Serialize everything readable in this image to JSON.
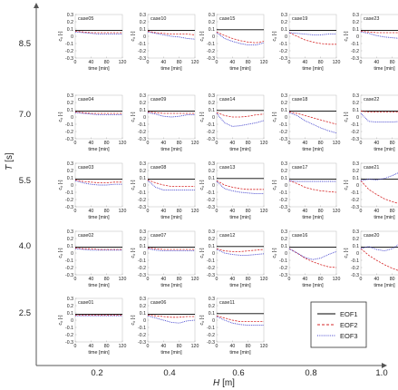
{
  "chart_data": {
    "type": "line",
    "big_axes": {
      "xlabel_var": "H",
      "xlabel_unit": "[m]",
      "ylabel_var": "T",
      "ylabel_unit": "[s]",
      "x_ticks": [
        "0.2",
        "0.4",
        "0.6",
        "0.8",
        "1.0"
      ],
      "y_ticks": [
        "8.5",
        "7.0",
        "5.5",
        "4.0",
        "2.5"
      ]
    },
    "subplot_axes": {
      "xlabel": "time [min]",
      "ylabel_var": "c",
      "ylabel_sub": "k",
      "ylabel_unit": "[-]",
      "x_ticks": [
        0,
        40,
        80,
        120
      ],
      "y_ticks": [
        "0.3",
        "0.2",
        "0.1",
        "0",
        "-0.1",
        "-0.2",
        "-0.3"
      ],
      "xlim": [
        0,
        120
      ],
      "ylim": [
        -0.3,
        0.3
      ]
    },
    "x": [
      0,
      20,
      40,
      60,
      80,
      100,
      120
    ],
    "legend": {
      "position": "bottom-right",
      "entries": [
        {
          "name": "EOF1",
          "color": "#000000",
          "dash": "solid"
        },
        {
          "name": "EOF2",
          "color": "#d62728",
          "dash": "dashed"
        },
        {
          "name": "EOF3",
          "color": "#3d3dcc",
          "dash": "dotted"
        }
      ]
    },
    "panels": [
      {
        "label": "case05",
        "col": 0,
        "row": 0,
        "series": [
          [
            0.08,
            0.08,
            0.08,
            0.08,
            0.08,
            0.08,
            0.08
          ],
          [
            0.07,
            0.06,
            0.05,
            0.05,
            0.05,
            0.05,
            0.05
          ],
          [
            0.06,
            0.05,
            0.04,
            0.03,
            0.03,
            0.03,
            0.03
          ]
        ]
      },
      {
        "label": "case10",
        "col": 1,
        "row": 0,
        "series": [
          [
            0.08,
            0.08,
            0.08,
            0.08,
            0.08,
            0.08,
            0.08
          ],
          [
            0.07,
            0.05,
            0.04,
            0.03,
            0.03,
            0.03,
            0.02
          ],
          [
            0.06,
            0.04,
            0.02,
            0.0,
            -0.01,
            -0.03,
            -0.04
          ]
        ]
      },
      {
        "label": "case15",
        "col": 2,
        "row": 0,
        "series": [
          [
            0.09,
            0.09,
            0.09,
            0.09,
            0.09,
            0.09,
            0.09
          ],
          [
            0.06,
            0.01,
            -0.03,
            -0.06,
            -0.08,
            -0.09,
            -0.07
          ],
          [
            0.05,
            -0.03,
            -0.07,
            -0.1,
            -0.12,
            -0.12,
            -0.09
          ]
        ]
      },
      {
        "label": "case19",
        "col": 3,
        "row": 0,
        "series": [
          [
            0.08,
            0.08,
            0.08,
            0.08,
            0.08,
            0.08,
            0.08
          ],
          [
            0.05,
            0.0,
            -0.05,
            -0.08,
            -0.1,
            -0.11,
            -0.11
          ],
          [
            0.05,
            0.04,
            0.03,
            0.02,
            0.02,
            0.03,
            0.03
          ]
        ]
      },
      {
        "label": "case23",
        "col": 4,
        "row": 0,
        "series": [
          [
            0.08,
            0.08,
            0.08,
            0.08,
            0.08,
            0.08,
            0.08
          ],
          [
            0.07,
            0.06,
            0.05,
            0.05,
            0.05,
            0.05,
            0.05
          ],
          [
            0.06,
            0.04,
            0.01,
            -0.01,
            -0.02,
            -0.03,
            -0.04
          ]
        ]
      },
      {
        "label": "case04",
        "col": 0,
        "row": 1,
        "series": [
          [
            0.08,
            0.08,
            0.08,
            0.08,
            0.08,
            0.08,
            0.08
          ],
          [
            0.07,
            0.06,
            0.05,
            0.05,
            0.05,
            0.05,
            0.05
          ],
          [
            0.06,
            0.05,
            0.04,
            0.03,
            0.03,
            0.03,
            0.03
          ]
        ]
      },
      {
        "label": "case09",
        "col": 1,
        "row": 1,
        "series": [
          [
            0.08,
            0.08,
            0.08,
            0.08,
            0.08,
            0.08,
            0.08
          ],
          [
            0.07,
            0.06,
            0.05,
            0.05,
            0.05,
            0.05,
            0.05
          ],
          [
            0.06,
            0.04,
            0.01,
            0.0,
            0.01,
            0.03,
            0.03
          ]
        ]
      },
      {
        "label": "case14",
        "col": 2,
        "row": 1,
        "series": [
          [
            0.09,
            0.09,
            0.09,
            0.09,
            0.09,
            0.09,
            0.09
          ],
          [
            0.06,
            0.02,
            0.0,
            0.0,
            0.01,
            0.03,
            0.04
          ],
          [
            0.05,
            -0.08,
            -0.13,
            -0.12,
            -0.1,
            -0.08,
            -0.05
          ]
        ]
      },
      {
        "label": "case18",
        "col": 3,
        "row": 1,
        "series": [
          [
            0.08,
            0.08,
            0.08,
            0.08,
            0.08,
            0.08,
            0.08
          ],
          [
            0.07,
            0.05,
            0.02,
            -0.01,
            -0.04,
            -0.07,
            -0.1
          ],
          [
            0.06,
            0.02,
            -0.05,
            -0.1,
            -0.15,
            -0.19,
            -0.22
          ]
        ]
      },
      {
        "label": "case22",
        "col": 4,
        "row": 1,
        "series": [
          [
            0.08,
            0.08,
            0.08,
            0.08,
            0.08,
            0.08,
            0.08
          ],
          [
            0.08,
            0.07,
            0.07,
            0.07,
            0.07,
            0.07,
            0.07
          ],
          [
            0.05,
            -0.06,
            -0.07,
            -0.07,
            -0.07,
            -0.06,
            -0.06
          ]
        ]
      },
      {
        "label": "case03",
        "col": 0,
        "row": 2,
        "series": [
          [
            0.08,
            0.08,
            0.08,
            0.08,
            0.08,
            0.08,
            0.08
          ],
          [
            0.07,
            0.05,
            0.04,
            0.03,
            0.03,
            0.04,
            0.04
          ],
          [
            0.06,
            0.03,
            0.01,
            0.0,
            0.0,
            0.01,
            0.01
          ]
        ]
      },
      {
        "label": "case08",
        "col": 1,
        "row": 2,
        "series": [
          [
            0.08,
            0.08,
            0.08,
            0.08,
            0.08,
            0.08,
            0.08
          ],
          [
            0.07,
            0.03,
            0.0,
            -0.02,
            -0.02,
            -0.02,
            -0.02
          ],
          [
            0.06,
            -0.03,
            -0.07,
            -0.07,
            -0.07,
            -0.07,
            -0.07
          ]
        ]
      },
      {
        "label": "case13",
        "col": 2,
        "row": 2,
        "series": [
          [
            0.09,
            0.09,
            0.09,
            0.09,
            0.09,
            0.09,
            0.09
          ],
          [
            0.06,
            0.0,
            -0.03,
            -0.05,
            -0.06,
            -0.06,
            -0.06
          ],
          [
            0.05,
            -0.05,
            -0.08,
            -0.1,
            -0.11,
            -0.12,
            -0.12
          ]
        ]
      },
      {
        "label": "case17",
        "col": 3,
        "row": 2,
        "series": [
          [
            0.08,
            0.08,
            0.08,
            0.08,
            0.08,
            0.08,
            0.08
          ],
          [
            0.06,
            0.02,
            -0.03,
            -0.06,
            -0.08,
            -0.09,
            -0.1
          ],
          [
            0.06,
            0.05,
            0.05,
            0.05,
            0.05,
            0.05,
            0.05
          ]
        ]
      },
      {
        "label": "case21",
        "col": 4,
        "row": 2,
        "series": [
          [
            0.08,
            0.08,
            0.08,
            0.08,
            0.08,
            0.08,
            0.08
          ],
          [
            0.06,
            -0.06,
            -0.13,
            -0.19,
            -0.23,
            -0.26,
            -0.27
          ],
          [
            0.06,
            0.08,
            0.07,
            0.09,
            0.13,
            0.18,
            0.22
          ]
        ]
      },
      {
        "label": "case02",
        "col": 0,
        "row": 3,
        "series": [
          [
            0.08,
            0.08,
            0.08,
            0.08,
            0.08,
            0.08,
            0.08
          ],
          [
            0.07,
            0.06,
            0.06,
            0.05,
            0.05,
            0.05,
            0.05
          ],
          [
            0.06,
            0.05,
            0.04,
            0.04,
            0.04,
            0.04,
            0.04
          ]
        ]
      },
      {
        "label": "case07",
        "col": 1,
        "row": 3,
        "series": [
          [
            0.08,
            0.08,
            0.08,
            0.08,
            0.08,
            0.08,
            0.08
          ],
          [
            0.07,
            0.06,
            0.05,
            0.05,
            0.05,
            0.05,
            0.05
          ],
          [
            0.06,
            0.04,
            0.03,
            0.03,
            0.03,
            0.03,
            0.03
          ]
        ]
      },
      {
        "label": "case12",
        "col": 2,
        "row": 3,
        "series": [
          [
            0.09,
            0.09,
            0.09,
            0.09,
            0.09,
            0.09,
            0.09
          ],
          [
            0.06,
            0.03,
            0.02,
            0.02,
            0.03,
            0.04,
            0.05
          ],
          [
            0.05,
            0.0,
            -0.02,
            -0.03,
            -0.03,
            -0.02,
            -0.01
          ]
        ]
      },
      {
        "label": "case16",
        "col": 3,
        "row": 3,
        "series": [
          [
            0.08,
            0.08,
            0.08,
            0.08,
            0.08,
            0.08,
            0.08
          ],
          [
            0.06,
            0.0,
            -0.07,
            -0.12,
            -0.16,
            -0.19,
            -0.2
          ],
          [
            0.06,
            0.0,
            -0.06,
            -0.09,
            -0.07,
            -0.02,
            0.02
          ]
        ]
      },
      {
        "label": "case20",
        "col": 4,
        "row": 3,
        "series": [
          [
            0.08,
            0.08,
            0.08,
            0.08,
            0.08,
            0.08,
            0.08
          ],
          [
            0.06,
            -0.03,
            -0.1,
            -0.16,
            -0.21,
            -0.25,
            -0.27
          ],
          [
            0.06,
            0.09,
            0.05,
            0.03,
            0.06,
            0.13,
            0.19
          ]
        ]
      },
      {
        "label": "case01",
        "col": 0,
        "row": 4,
        "series": [
          [
            0.08,
            0.08,
            0.08,
            0.08,
            0.08,
            0.08,
            0.08
          ],
          [
            0.07,
            0.07,
            0.07,
            0.07,
            0.07,
            0.07,
            0.07
          ],
          [
            0.06,
            0.06,
            0.06,
            0.06,
            0.06,
            0.06,
            0.06
          ]
        ]
      },
      {
        "label": "case06",
        "col": 1,
        "row": 4,
        "series": [
          [
            0.08,
            0.08,
            0.08,
            0.08,
            0.08,
            0.08,
            0.08
          ],
          [
            0.07,
            0.06,
            0.05,
            0.04,
            0.04,
            0.05,
            0.05
          ],
          [
            0.06,
            0.03,
            0.0,
            -0.03,
            -0.04,
            -0.01,
            0.0
          ]
        ]
      },
      {
        "label": "case11",
        "col": 2,
        "row": 4,
        "series": [
          [
            0.09,
            0.09,
            0.09,
            0.09,
            0.09,
            0.09,
            0.09
          ],
          [
            0.06,
            0.03,
            0.0,
            -0.02,
            -0.02,
            -0.02,
            -0.02
          ],
          [
            0.05,
            0.0,
            -0.04,
            -0.06,
            -0.07,
            -0.07,
            -0.07
          ]
        ]
      }
    ]
  }
}
